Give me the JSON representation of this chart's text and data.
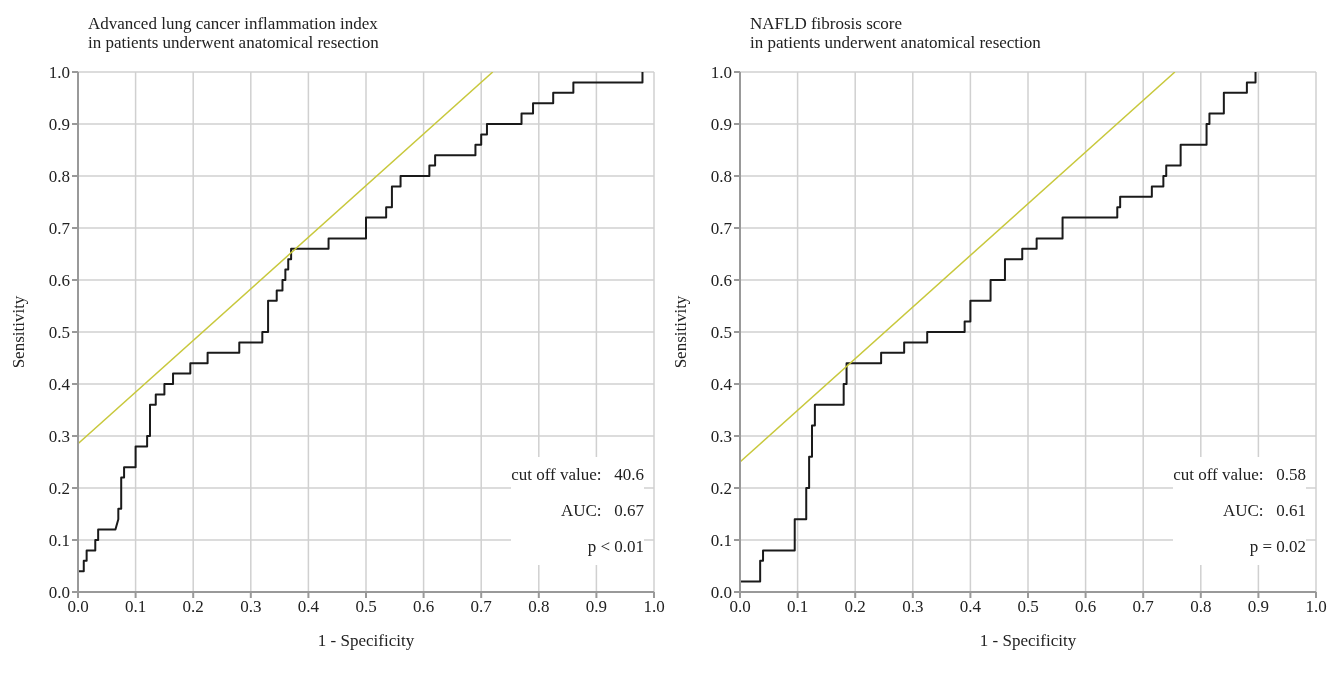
{
  "chart_data": [
    {
      "type": "line",
      "title": "Advanced lung cancer inflammation index\nin patients underwent anatomical resection",
      "xlabel": "1 - Specificity",
      "ylabel": "Sensitivity",
      "xlim": [
        0,
        1
      ],
      "ylim": [
        0,
        1
      ],
      "grid": true,
      "xticks": [
        {
          "value": 0,
          "label": "0.0"
        },
        {
          "value": 0.1,
          "label": "0.1"
        },
        {
          "value": 0.2,
          "label": "0.2"
        },
        {
          "value": 0.3,
          "label": "0.3"
        },
        {
          "value": 0.4,
          "label": "0.4"
        },
        {
          "value": 0.5,
          "label": "0.5"
        },
        {
          "value": 0.6,
          "label": "0.6"
        },
        {
          "value": 0.7,
          "label": "0.7"
        },
        {
          "value": 0.8,
          "label": "0.8"
        },
        {
          "value": 0.9,
          "label": "0.9"
        },
        {
          "value": 1,
          "label": "1.0"
        }
      ],
      "yticks": [
        {
          "value": 0,
          "label": "0.0"
        },
        {
          "value": 0.1,
          "label": "0.1"
        },
        {
          "value": 0.2,
          "label": "0.2"
        },
        {
          "value": 0.3,
          "label": "0.3"
        },
        {
          "value": 0.4,
          "label": "0.4"
        },
        {
          "value": 0.5,
          "label": "0.5"
        },
        {
          "value": 0.6,
          "label": "0.6"
        },
        {
          "value": 0.7,
          "label": "0.7"
        },
        {
          "value": 0.8,
          "label": "0.8"
        },
        {
          "value": 0.9,
          "label": "0.9"
        },
        {
          "value": 1,
          "label": "1.0"
        }
      ],
      "annotations": [
        "cut off value:   40.6",
        "AUC:   0.67",
        "p < 0.01"
      ],
      "series": [
        {
          "color": "#1a1a1a",
          "x": [
            0,
            0.01,
            0.01,
            0.015,
            0.015,
            0.03,
            0.03,
            0.035,
            0.035,
            0.065,
            0.07,
            0.07,
            0.075,
            0.075,
            0.08,
            0.08,
            0.1,
            0.1,
            0.12,
            0.12,
            0.125,
            0.125,
            0.135,
            0.135,
            0.15,
            0.15,
            0.165,
            0.165,
            0.195,
            0.195,
            0.225,
            0.225,
            0.28,
            0.28,
            0.32,
            0.32,
            0.33,
            0.33,
            0.345,
            0.345,
            0.355,
            0.355,
            0.36,
            0.36,
            0.365,
            0.365,
            0.37,
            0.37,
            0.435,
            0.435,
            0.5,
            0.5,
            0.535,
            0.535,
            0.545,
            0.545,
            0.56,
            0.56,
            0.61,
            0.61,
            0.62,
            0.62,
            0.69,
            0.69,
            0.7,
            0.7,
            0.71,
            0.71,
            0.77,
            0.77,
            0.79,
            0.79,
            0.825,
            0.825,
            0.86,
            0.86,
            0.98,
            0.98
          ],
          "values": [
            0.04,
            0.04,
            0.06,
            0.06,
            0.08,
            0.08,
            0.1,
            0.1,
            0.12,
            0.12,
            0.14,
            0.16,
            0.16,
            0.22,
            0.22,
            0.24,
            0.24,
            0.28,
            0.28,
            0.3,
            0.3,
            0.36,
            0.36,
            0.38,
            0.38,
            0.4,
            0.4,
            0.42,
            0.42,
            0.44,
            0.44,
            0.46,
            0.46,
            0.48,
            0.48,
            0.5,
            0.5,
            0.56,
            0.56,
            0.58,
            0.58,
            0.6,
            0.6,
            0.62,
            0.62,
            0.64,
            0.64,
            0.66,
            0.66,
            0.68,
            0.68,
            0.72,
            0.72,
            0.74,
            0.74,
            0.78,
            0.78,
            0.8,
            0.8,
            0.82,
            0.82,
            0.84,
            0.84,
            0.86,
            0.86,
            0.88,
            0.88,
            0.9,
            0.9,
            0.92,
            0.92,
            0.94,
            0.94,
            0.96,
            0.96,
            0.98,
            0.98,
            1.0
          ]
        },
        {
          "color": "#c8c83c",
          "x": [
            0,
            0.72
          ],
          "values": [
            0.285,
            1.0
          ]
        }
      ]
    },
    {
      "type": "line",
      "title": "NAFLD fibrosis score\nin patients underwent anatomical resection",
      "xlabel": "1 - Specificity",
      "ylabel": "Sensitivity",
      "xlim": [
        0,
        1
      ],
      "ylim": [
        0,
        1
      ],
      "grid": true,
      "xticks": [
        {
          "value": 0,
          "label": "0.0"
        },
        {
          "value": 0.1,
          "label": "0.1"
        },
        {
          "value": 0.2,
          "label": "0.2"
        },
        {
          "value": 0.3,
          "label": "0.3"
        },
        {
          "value": 0.4,
          "label": "0.4"
        },
        {
          "value": 0.5,
          "label": "0.5"
        },
        {
          "value": 0.6,
          "label": "0.6"
        },
        {
          "value": 0.7,
          "label": "0.7"
        },
        {
          "value": 0.8,
          "label": "0.8"
        },
        {
          "value": 0.9,
          "label": "0.9"
        },
        {
          "value": 1,
          "label": "1.0"
        }
      ],
      "yticks": [
        {
          "value": 0,
          "label": "0.0"
        },
        {
          "value": 0.1,
          "label": "0.1"
        },
        {
          "value": 0.2,
          "label": "0.2"
        },
        {
          "value": 0.3,
          "label": "0.3"
        },
        {
          "value": 0.4,
          "label": "0.4"
        },
        {
          "value": 0.5,
          "label": "0.5"
        },
        {
          "value": 0.6,
          "label": "0.6"
        },
        {
          "value": 0.7,
          "label": "0.7"
        },
        {
          "value": 0.8,
          "label": "0.8"
        },
        {
          "value": 0.9,
          "label": "0.9"
        },
        {
          "value": 1,
          "label": "1.0"
        }
      ],
      "annotations": [
        "cut off value:   0.58",
        "AUC:   0.61",
        "p = 0.02"
      ],
      "series": [
        {
          "color": "#1a1a1a",
          "x": [
            0,
            0.035,
            0.035,
            0.04,
            0.04,
            0.095,
            0.095,
            0.115,
            0.115,
            0.12,
            0.12,
            0.125,
            0.125,
            0.13,
            0.13,
            0.18,
            0.18,
            0.185,
            0.185,
            0.245,
            0.245,
            0.285,
            0.285,
            0.325,
            0.325,
            0.39,
            0.39,
            0.4,
            0.4,
            0.435,
            0.435,
            0.46,
            0.46,
            0.49,
            0.49,
            0.515,
            0.515,
            0.56,
            0.56,
            0.655,
            0.655,
            0.66,
            0.66,
            0.715,
            0.715,
            0.735,
            0.735,
            0.74,
            0.74,
            0.765,
            0.765,
            0.81,
            0.81,
            0.815,
            0.815,
            0.84,
            0.84,
            0.88,
            0.88,
            0.895,
            0.895
          ],
          "values": [
            0.02,
            0.02,
            0.06,
            0.06,
            0.08,
            0.08,
            0.14,
            0.14,
            0.2,
            0.2,
            0.26,
            0.26,
            0.32,
            0.32,
            0.36,
            0.36,
            0.4,
            0.4,
            0.44,
            0.44,
            0.46,
            0.46,
            0.48,
            0.48,
            0.5,
            0.5,
            0.52,
            0.52,
            0.56,
            0.56,
            0.6,
            0.6,
            0.64,
            0.64,
            0.66,
            0.66,
            0.68,
            0.68,
            0.72,
            0.72,
            0.74,
            0.74,
            0.76,
            0.76,
            0.78,
            0.78,
            0.8,
            0.8,
            0.82,
            0.82,
            0.86,
            0.86,
            0.9,
            0.9,
            0.92,
            0.92,
            0.96,
            0.96,
            0.98,
            0.98,
            1.0
          ]
        },
        {
          "color": "#c8c83c",
          "x": [
            0,
            0.755
          ],
          "values": [
            0.25,
            1.0
          ]
        }
      ]
    }
  ]
}
